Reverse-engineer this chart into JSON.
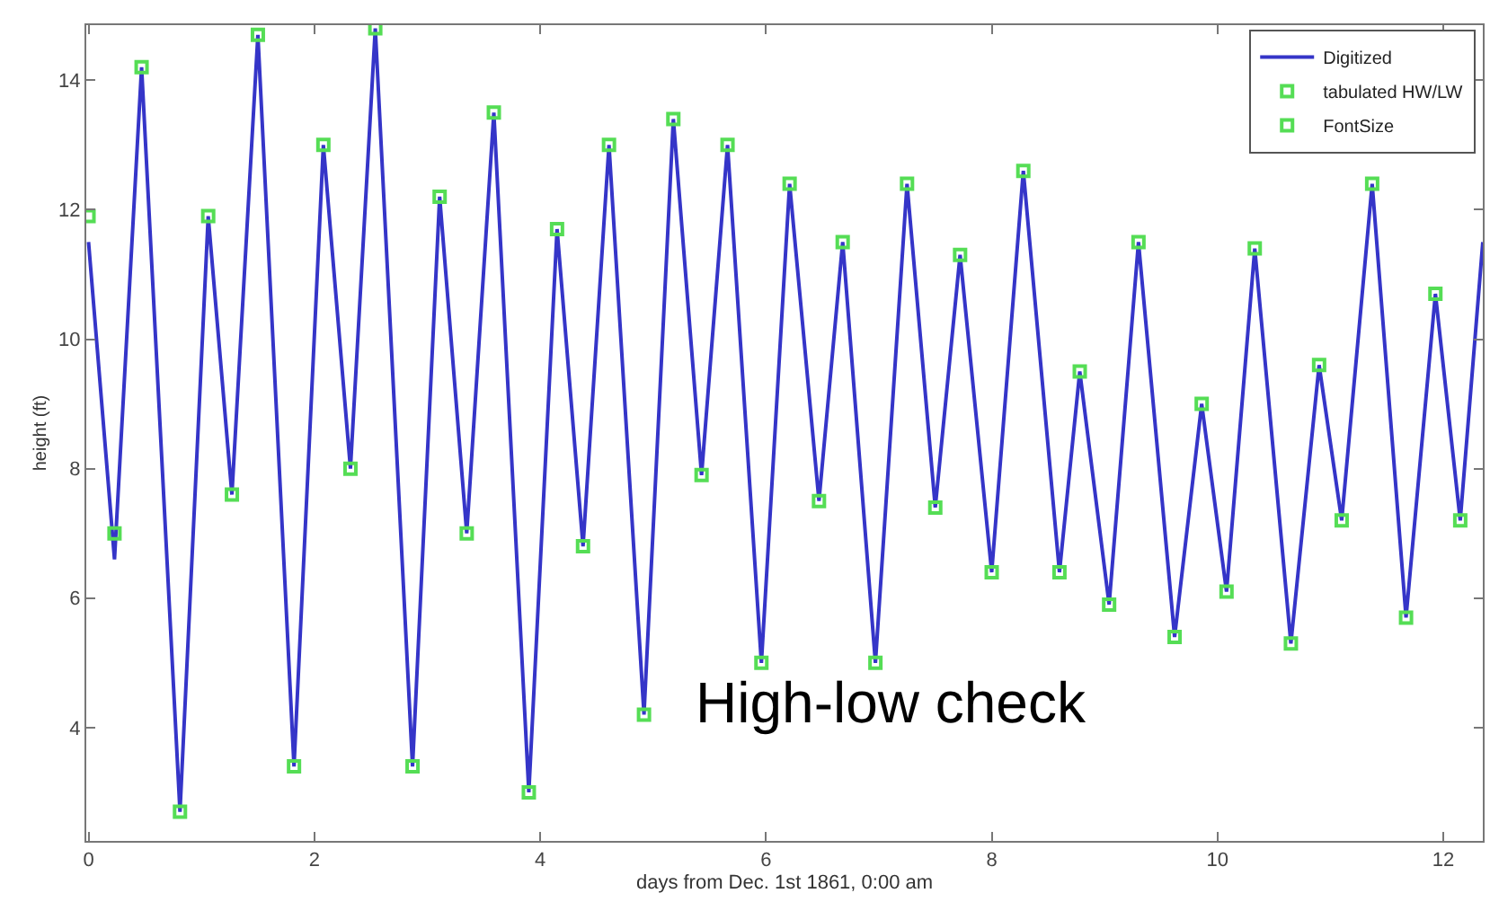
{
  "chart_data": {
    "type": "line",
    "xlabel": "days from Dec. 1st 1861, 0:00 am",
    "ylabel": "height (ft)",
    "xlim": [
      -0.02,
      12.35
    ],
    "ylim": [
      2.25,
      14.85
    ],
    "xticks": [
      0,
      2,
      4,
      6,
      8,
      10,
      12
    ],
    "yticks": [
      4,
      6,
      8,
      10,
      12,
      14
    ],
    "legend": "top right",
    "annotations": [
      "High-low check"
    ],
    "series": [
      {
        "name": "Digitized",
        "color": "#3535c8",
        "marker": "none",
        "line_style": "solid",
        "x": [
          0,
          0.23,
          0.47,
          0.81,
          1.06,
          1.27,
          1.5,
          1.82,
          2.08,
          2.32,
          2.54,
          2.87,
          3.11,
          3.35,
          3.59,
          3.9,
          4.15,
          4.38,
          4.61,
          4.92,
          5.18,
          5.43,
          5.66,
          5.96,
          6.21,
          6.47,
          6.68,
          6.97,
          7.25,
          7.5,
          7.72,
          8.0,
          8.28,
          8.6,
          8.78,
          9.04,
          9.3,
          9.62,
          9.86,
          10.08,
          10.33,
          10.65,
          10.9,
          11.1,
          11.37,
          11.67,
          11.93,
          12.15,
          12.35
        ],
        "values": [
          11.5,
          6.6,
          14.2,
          2.7,
          11.9,
          7.6,
          14.7,
          3.4,
          13.0,
          8.0,
          14.8,
          3.4,
          12.2,
          7.0,
          13.5,
          3.0,
          11.7,
          6.8,
          13.0,
          4.2,
          13.4,
          7.9,
          13.0,
          5.0,
          12.4,
          7.5,
          11.5,
          5.0,
          12.4,
          7.4,
          11.3,
          6.4,
          12.6,
          6.4,
          9.5,
          5.9,
          11.5,
          5.4,
          9.0,
          6.1,
          11.4,
          5.3,
          9.6,
          7.2,
          12.4,
          5.7,
          10.7,
          7.2,
          11.5
        ]
      },
      {
        "name": "tabulated HW/LW",
        "type": "scatter",
        "color": "#55dd55",
        "marker": "square",
        "x": [
          0.23,
          0.47,
          0.81,
          1.06,
          1.27,
          1.5,
          1.82,
          2.08,
          2.32,
          2.54,
          2.87,
          3.11,
          3.35,
          3.59,
          3.9,
          4.15,
          4.38,
          4.61,
          4.92,
          5.18,
          5.43,
          5.66,
          5.96,
          6.21,
          6.47,
          6.68,
          6.97,
          7.25,
          7.5,
          7.72,
          8.0,
          8.28,
          8.6,
          8.78,
          9.04,
          9.3,
          9.62,
          9.86,
          10.08,
          10.33,
          10.65,
          10.9,
          11.1,
          11.37,
          11.67,
          11.93,
          12.15
        ],
        "values": [
          7.0,
          14.2,
          2.7,
          11.9,
          7.6,
          14.7,
          3.4,
          13.0,
          8.0,
          14.8,
          3.4,
          12.2,
          7.0,
          13.5,
          3.0,
          11.7,
          6.8,
          13.0,
          4.2,
          13.4,
          7.9,
          13.0,
          5.0,
          12.4,
          7.5,
          11.5,
          5.0,
          12.4,
          7.4,
          11.3,
          6.4,
          12.6,
          6.4,
          9.5,
          5.9,
          11.5,
          5.4,
          9.0,
          6.1,
          11.4,
          5.3,
          9.6,
          7.2,
          12.4,
          5.7,
          10.7,
          7.2
        ]
      },
      {
        "name": "FontSize",
        "type": "scatter",
        "color": "#55dd55",
        "marker": "square",
        "x": [
          0
        ],
        "values": [
          11.9
        ]
      }
    ]
  }
}
